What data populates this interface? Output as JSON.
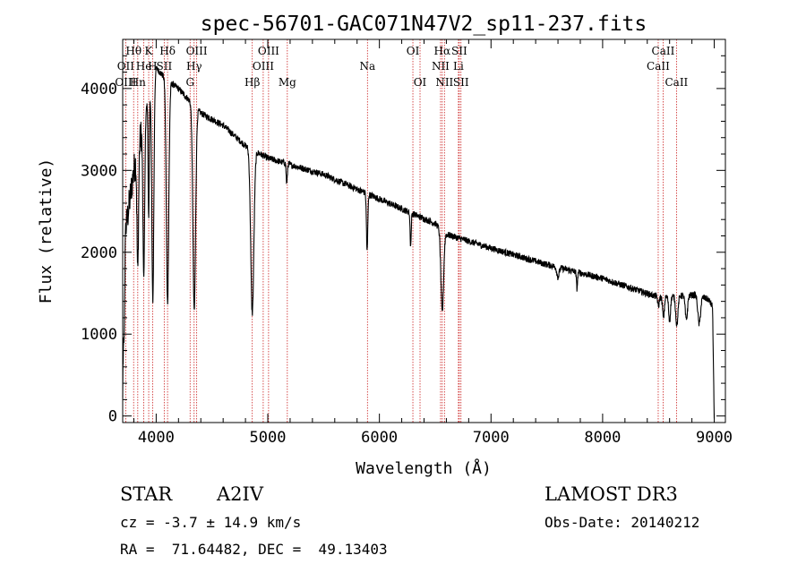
{
  "chart_data": {
    "type": "line",
    "title": "spec-56701-GAC071N47V2_sp11-237.fits",
    "xlabel": "Wavelength (Å)",
    "ylabel": "Flux (relative)",
    "xlim": [
      3700,
      9100
    ],
    "ylim": [
      -80,
      4600
    ],
    "x_ticks": [
      4000,
      5000,
      6000,
      7000,
      8000,
      9000
    ],
    "y_ticks": [
      0,
      1000,
      2000,
      3000,
      4000
    ],
    "x_tick_labels": [
      "4000",
      "5000",
      "6000",
      "7000",
      "8000",
      "9000"
    ],
    "y_tick_labels": [
      "0",
      "1000",
      "2000",
      "3000",
      "4000"
    ],
    "continuum": [
      [
        3700,
        2000
      ],
      [
        3800,
        3000
      ],
      [
        3900,
        3700
      ],
      [
        3950,
        4000
      ],
      [
        4000,
        4250
      ],
      [
        4100,
        4100
      ],
      [
        4200,
        4000
      ],
      [
        4300,
        3850
      ],
      [
        4400,
        3700
      ],
      [
        4600,
        3550
      ],
      [
        4800,
        3300
      ],
      [
        5000,
        3150
      ],
      [
        5500,
        2950
      ],
      [
        6000,
        2650
      ],
      [
        6500,
        2350
      ],
      [
        6600,
        2220
      ],
      [
        7000,
        2050
      ],
      [
        7500,
        1850
      ],
      [
        8000,
        1680
      ],
      [
        8500,
        1450
      ],
      [
        8850,
        1480
      ],
      [
        8950,
        1420
      ],
      [
        9000,
        1300
      ]
    ],
    "absorption_lines": [
      {
        "center": 3835,
        "depth": 1500,
        "width": 7
      },
      {
        "center": 3889,
        "depth": 1900,
        "width": 8
      },
      {
        "center": 3933,
        "depth": 1500,
        "width": 5
      },
      {
        "center": 3970,
        "depth": 2700,
        "width": 9
      },
      {
        "center": 4102,
        "depth": 2700,
        "width": 11
      },
      {
        "center": 4341,
        "depth": 2500,
        "width": 12
      },
      {
        "center": 4861,
        "depth": 2000,
        "width": 14
      },
      {
        "center": 5170,
        "depth": 250,
        "width": 5
      },
      {
        "center": 5890,
        "depth": 700,
        "width": 6
      },
      {
        "center": 6280,
        "depth": 400,
        "width": 5
      },
      {
        "center": 6563,
        "depth": 1000,
        "width": 12
      },
      {
        "center": 7600,
        "depth": 120,
        "width": 10
      },
      {
        "center": 7770,
        "depth": 200,
        "width": 5
      },
      {
        "center": 8500,
        "depth": 120,
        "width": 6
      },
      {
        "center": 8545,
        "depth": 250,
        "width": 8
      },
      {
        "center": 8600,
        "depth": 300,
        "width": 8
      },
      {
        "center": 8665,
        "depth": 350,
        "width": 10
      },
      {
        "center": 8750,
        "depth": 300,
        "width": 10
      },
      {
        "center": 8865,
        "depth": 350,
        "width": 12
      }
    ],
    "noise": {
      "amplitude": 40,
      "region_blue_amplitude": 200,
      "region_blue_end": 3880
    },
    "spectral_lines": [
      {
        "label": "Hθ",
        "wavelength": 3798,
        "row": 0
      },
      {
        "label": "OII",
        "wavelength": 3727,
        "row": 1
      },
      {
        "label": "OIII",
        "wavelength": 3727,
        "row": 2
      },
      {
        "label": "He",
        "wavelength": 3889,
        "row": 1
      },
      {
        "label": "K",
        "wavelength": 3933,
        "row": 0
      },
      {
        "label": "Hn",
        "wavelength": 3835,
        "row": 2
      },
      {
        "label": "Hδ",
        "wavelength": 4102,
        "row": 0
      },
      {
        "label": "SII",
        "wavelength": 4072,
        "row": 1
      },
      {
        "label": "H",
        "wavelength": 3968,
        "row": 1
      },
      {
        "label": "OIII",
        "wavelength": 4363,
        "row": 0
      },
      {
        "label": "Hγ",
        "wavelength": 4340,
        "row": 1
      },
      {
        "label": "G",
        "wavelength": 4304,
        "row": 2
      },
      {
        "label": "OIII",
        "wavelength": 5007,
        "row": 0
      },
      {
        "label": "OIII",
        "wavelength": 4959,
        "row": 1
      },
      {
        "label": "Hβ",
        "wavelength": 4861,
        "row": 2
      },
      {
        "label": "Mg",
        "wavelength": 5175,
        "row": 2
      },
      {
        "label": "Na",
        "wavelength": 5893,
        "row": 1
      },
      {
        "label": "OI",
        "wavelength": 6300,
        "row": 0
      },
      {
        "label": "OI",
        "wavelength": 6364,
        "row": 2
      },
      {
        "label": "Hα",
        "wavelength": 6563,
        "row": 0
      },
      {
        "label": "NII",
        "wavelength": 6548,
        "row": 1
      },
      {
        "label": "NII",
        "wavelength": 6583,
        "row": 2
      },
      {
        "label": "SII",
        "wavelength": 6716,
        "row": 0
      },
      {
        "label": "Li",
        "wavelength": 6708,
        "row": 1
      },
      {
        "label": "SII",
        "wavelength": 6731,
        "row": 2
      },
      {
        "label": "CaII",
        "wavelength": 8542,
        "row": 0
      },
      {
        "label": "CaII",
        "wavelength": 8498,
        "row": 1
      },
      {
        "label": "CaII",
        "wavelength": 8662,
        "row": 2
      }
    ]
  },
  "info": {
    "object_type": "STAR",
    "subclass": "A2IV",
    "survey": "LAMOST DR3",
    "redshift_line": "cz = -3.7 ± 14.9 km/s",
    "obs_date_line": "Obs-Date: 20140212",
    "coords_line": "RA =  71.64482, DEC =  49.13403"
  },
  "colors": {
    "spectrum": "#000000",
    "line_marker": "#cc2222",
    "axis": "#000000"
  }
}
